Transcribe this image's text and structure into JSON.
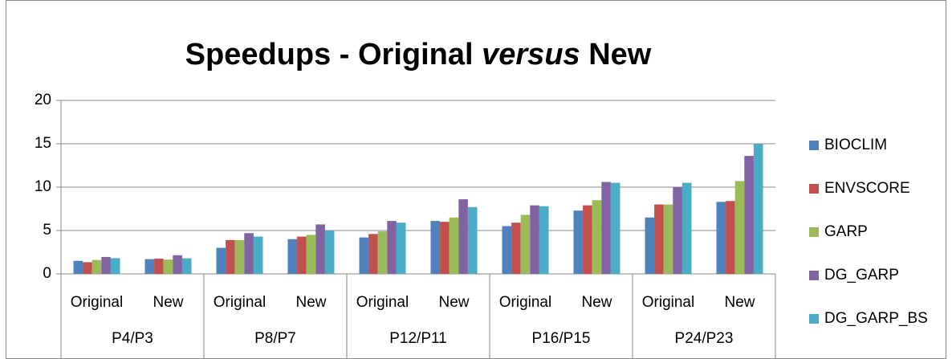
{
  "chart_data": {
    "type": "bar",
    "title": [
      {
        "text": "Speedups - Original "
      },
      {
        "text": "versus",
        "italic": true
      },
      {
        "text": " New"
      }
    ],
    "categories": [
      "Original",
      "New",
      "Original",
      "New",
      "Original",
      "New",
      "Original",
      "New",
      "Original",
      "New"
    ],
    "groups": [
      "P4/P3",
      "P8/P7",
      "P12/P11",
      "P16/P15",
      "P24/P23"
    ],
    "series": [
      {
        "name": "BIOCLIM",
        "color": "#4f81bd",
        "values": [
          1.5,
          1.7,
          3.0,
          4.0,
          4.2,
          6.1,
          5.5,
          7.3,
          6.5,
          8.3
        ]
      },
      {
        "name": "ENVSCORE",
        "color": "#c0504d",
        "values": [
          1.35,
          1.75,
          3.9,
          4.3,
          4.6,
          6.0,
          5.9,
          7.9,
          8.0,
          8.4
        ]
      },
      {
        "name": "GARP",
        "color": "#9bbb59",
        "values": [
          1.6,
          1.65,
          3.9,
          4.5,
          4.9,
          6.5,
          6.8,
          8.5,
          8.0,
          10.7
        ]
      },
      {
        "name": "DG_GARP",
        "color": "#8064a2",
        "values": [
          1.95,
          2.15,
          4.7,
          5.7,
          6.1,
          8.6,
          7.9,
          10.6,
          10.0,
          13.6
        ]
      },
      {
        "name": "DG_GARP_BS",
        "color": "#4bacc6",
        "values": [
          1.8,
          1.8,
          4.3,
          5.0,
          5.9,
          7.7,
          7.8,
          10.5,
          10.5,
          15.0
        ]
      }
    ],
    "ylim": [
      0,
      20
    ],
    "yticks": [
      0,
      5,
      10,
      15,
      20
    ],
    "grid": true,
    "legend": "right"
  }
}
